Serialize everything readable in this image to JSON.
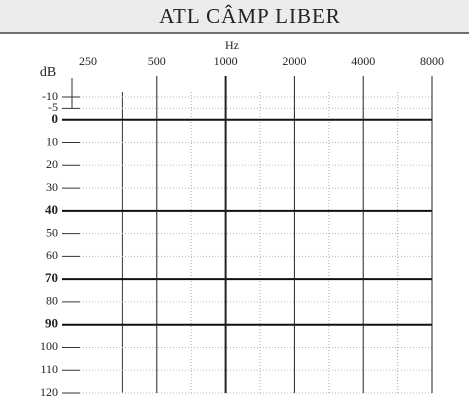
{
  "chart_data": {
    "type": "line",
    "title": "ATL CÂMP LIBER",
    "xlabel": "Hz",
    "ylabel": "dB",
    "xscale": "log",
    "xlim": [
      250,
      8000
    ],
    "xticks": [
      250,
      500,
      1000,
      2000,
      4000,
      8000
    ],
    "ylim": [
      -10,
      120
    ],
    "yticks": [
      -10,
      -5,
      0,
      10,
      20,
      30,
      40,
      50,
      60,
      70,
      80,
      90,
      100,
      110,
      120
    ],
    "y_inverted": true,
    "grid": true,
    "major_x": [
      1000
    ],
    "major_y": [
      0,
      40,
      70,
      90
    ]
  }
}
